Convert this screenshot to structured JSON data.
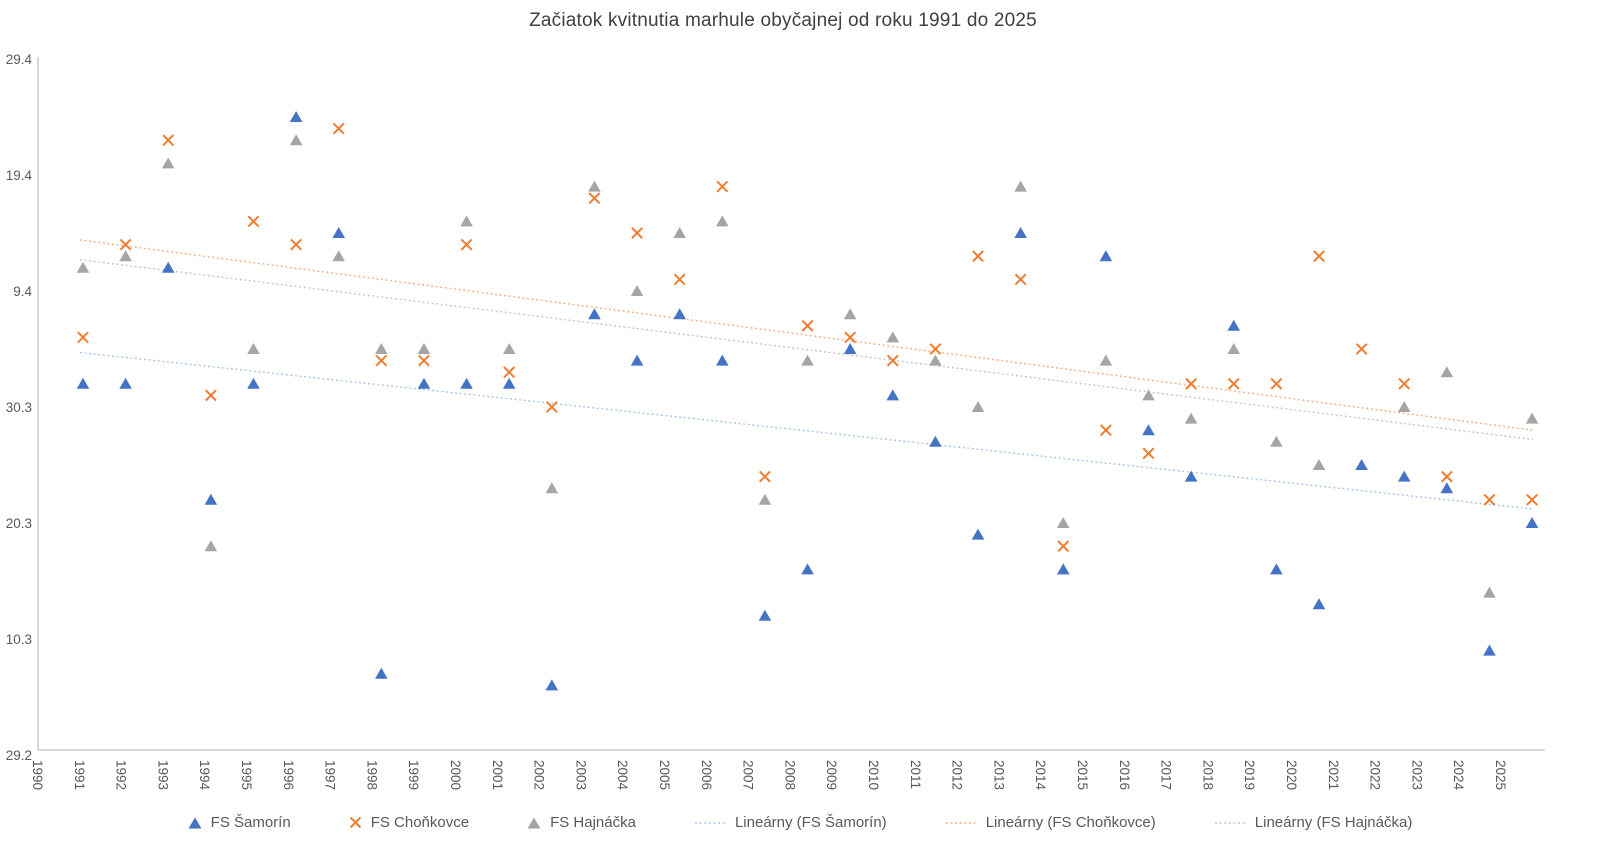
{
  "title": "Začiatok kvitnutia marhule obyčajnej od roku 1991 do 2025",
  "colors": {
    "samorin": "#4472C4",
    "chonkovce": "#ED7D31",
    "hajnacka": "#A5A5A5",
    "samorin_trend": "#A8C6E5",
    "chonkovce_trend": "#F3B183",
    "hajnacka_trend": "#C6C6C6",
    "text": "#595959",
    "title_text": "#404040",
    "axis_line": "#BFBFBF"
  },
  "chart_data": {
    "type": "scatter",
    "title": "Začiatok kvitnutia marhule obyčajnej od roku 1991 do 2025",
    "xlabel": "",
    "ylabel": "",
    "x_axis_ticks": [
      "1990",
      "1991",
      "1992",
      "1993",
      "1994",
      "1995",
      "1996",
      "1997",
      "1998",
      "1999",
      "2000",
      "2001",
      "2002",
      "2003",
      "2004",
      "2005",
      "2006",
      "2007",
      "2008",
      "2009",
      "2010",
      "2011",
      "2012",
      "2013",
      "2014",
      "2015",
      "2016",
      "2017",
      "2018",
      "2019",
      "2020",
      "2021",
      "2022",
      "2023",
      "2024",
      "2025"
    ],
    "x_years": [
      1991,
      1992,
      1993,
      1994,
      1995,
      1996,
      1997,
      1998,
      1999,
      2000,
      2001,
      2002,
      2003,
      2004,
      2005,
      2006,
      2007,
      2008,
      2009,
      2010,
      2011,
      2012,
      2013,
      2014,
      2015,
      2016,
      2017,
      2018,
      2019,
      2020,
      2021,
      2022,
      2023,
      2024,
      2025
    ],
    "y_axis_note": "values are day-of-year in a leap year; axis labels are dates day.month",
    "y_axis_ticks": [
      {
        "day": 120,
        "label": "29.4"
      },
      {
        "day": 110,
        "label": "19.4"
      },
      {
        "day": 100,
        "label": "9.4"
      },
      {
        "day": 90,
        "label": "30.3"
      },
      {
        "day": 80,
        "label": "20.3"
      },
      {
        "day": 70,
        "label": "10.3"
      },
      {
        "day": 60,
        "label": "29.2"
      }
    ],
    "ylim_days": [
      60,
      120
    ],
    "series": [
      {
        "name": "FS Šamorín",
        "marker": "triangle",
        "color_key": "samorin",
        "days": [
          92,
          92,
          102,
          82,
          92,
          115,
          105,
          67,
          92,
          92,
          92,
          66,
          98,
          94,
          98,
          94,
          72,
          76,
          95,
          91,
          87,
          79,
          105,
          76,
          103,
          88,
          84,
          97,
          76,
          73,
          85,
          84,
          83,
          69,
          80
        ]
      },
      {
        "name": "FS Choňkovce",
        "marker": "x",
        "color_key": "chonkovce",
        "days": [
          96,
          104,
          113,
          91,
          106,
          104,
          114,
          94,
          94,
          104,
          93,
          90,
          108,
          105,
          101,
          109,
          84,
          97,
          96,
          94,
          95,
          103,
          101,
          78,
          88,
          86,
          92,
          92,
          92,
          103,
          95,
          92,
          84,
          82,
          82
        ]
      },
      {
        "name": "FS Hajnáčka",
        "marker": "triangle",
        "color_key": "hajnacka",
        "days": [
          102,
          103,
          111,
          78,
          95,
          113,
          103,
          95,
          95,
          106,
          95,
          83,
          109,
          100,
          105,
          106,
          82,
          94,
          98,
          96,
          94,
          90,
          109,
          80,
          94,
          91,
          89,
          95,
          87,
          85,
          null,
          90,
          93,
          74,
          89
        ]
      }
    ],
    "trendlines": [
      {
        "name": "Lineárny (FS Šamorín)",
        "color_key": "samorin_trend",
        "start_day": 94.7,
        "end_day": 81.2
      },
      {
        "name": "Lineárny (FS Choňkovce)",
        "color_key": "chonkovce_trend",
        "start_day": 104.4,
        "end_day": 88.0
      },
      {
        "name": "Lineárny (FS Hajnáčka)",
        "color_key": "hajnacka_trend",
        "start_day": 102.7,
        "end_day": 87.2
      }
    ],
    "legend_position": "bottom",
    "grid": false
  },
  "legend": {
    "items": [
      {
        "label": "FS Šamorín",
        "marker": "triangle",
        "color_key": "samorin"
      },
      {
        "label": "FS Choňkovce",
        "marker": "x",
        "color_key": "chonkovce"
      },
      {
        "label": "FS Hajnáčka",
        "marker": "triangle",
        "color_key": "hajnacka"
      },
      {
        "label": "Lineárny (FS Šamorín)",
        "marker": "dotted-line",
        "color_key": "samorin_trend"
      },
      {
        "label": "Lineárny (FS Choňkovce)",
        "marker": "dotted-line",
        "color_key": "chonkovce_trend"
      },
      {
        "label": "Lineárny (FS Hajnáčka)",
        "marker": "dotted-line",
        "color_key": "hajnacka_trend"
      }
    ]
  }
}
